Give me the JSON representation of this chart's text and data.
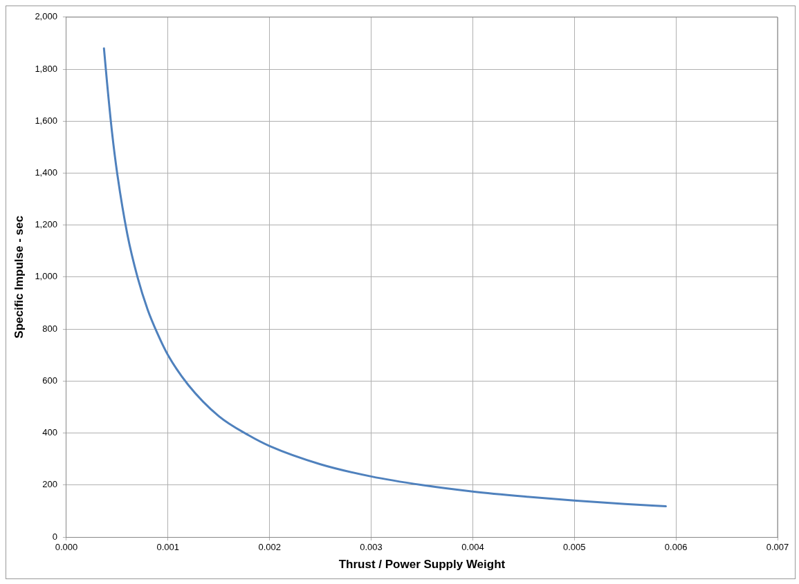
{
  "chart_data": {
    "type": "line",
    "xlabel": "Thrust / Power Supply Weight",
    "ylabel": "Specific Impulse - sec",
    "x": [
      0.00037,
      0.0004,
      0.00045,
      0.0005,
      0.0006,
      0.0007,
      0.0008,
      0.0009,
      0.001,
      0.0012,
      0.0015,
      0.0018,
      0.002,
      0.0025,
      0.003,
      0.0035,
      0.004,
      0.0045,
      0.005,
      0.0055,
      0.0059
    ],
    "series": [
      {
        "color": "#4f81bd",
        "values": [
          1880,
          1750,
          1555,
          1400,
          1165,
          1000,
          875,
          780,
          700,
          585,
          465,
          390,
          350,
          280,
          233,
          200,
          175,
          156,
          140,
          127,
          118
        ]
      }
    ],
    "xlim": [
      0,
      0.007
    ],
    "ylim": [
      0,
      2000
    ],
    "xticks": [
      {
        "value": 0,
        "label": "0.000"
      },
      {
        "value": 0.001,
        "label": "0.001"
      },
      {
        "value": 0.002,
        "label": "0.002"
      },
      {
        "value": 0.003,
        "label": "0.003"
      },
      {
        "value": 0.004,
        "label": "0.004"
      },
      {
        "value": 0.005,
        "label": "0.005"
      },
      {
        "value": 0.006,
        "label": "0.006"
      },
      {
        "value": 0.007,
        "label": "0.007"
      }
    ],
    "yticks": [
      0,
      200,
      400,
      600,
      800,
      {
        "value": 1000,
        "label": "1,000"
      },
      {
        "value": 1200,
        "label": "1,200"
      },
      {
        "value": 1400,
        "label": "1,400"
      },
      {
        "value": 1600,
        "label": "1,600"
      },
      {
        "value": 1800,
        "label": "1,800"
      },
      {
        "value": 2000,
        "label": "2,000"
      }
    ],
    "grid": true,
    "legend": false,
    "marker": "none",
    "line_style": "solid"
  }
}
